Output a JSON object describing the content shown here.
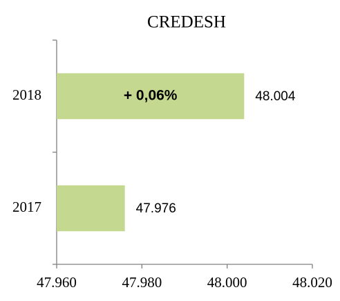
{
  "chart_data": {
    "type": "hbar",
    "title": "CREDESH",
    "categories": [
      "2018",
      "2017"
    ],
    "values": [
      48004,
      47976
    ],
    "value_labels": [
      "48.004",
      "47.976"
    ],
    "annotations": [
      {
        "text": "+ 0,06%",
        "category": "2018"
      }
    ],
    "color": "#c4d98f",
    "xlim": [
      47960,
      48020
    ],
    "xticks": [
      {
        "value": 47960,
        "label": "47.960"
      },
      {
        "value": 47980,
        "label": "47.980"
      },
      {
        "value": 48000,
        "label": "48.000"
      },
      {
        "value": 48020,
        "label": "48.020"
      }
    ],
    "grid": false
  }
}
